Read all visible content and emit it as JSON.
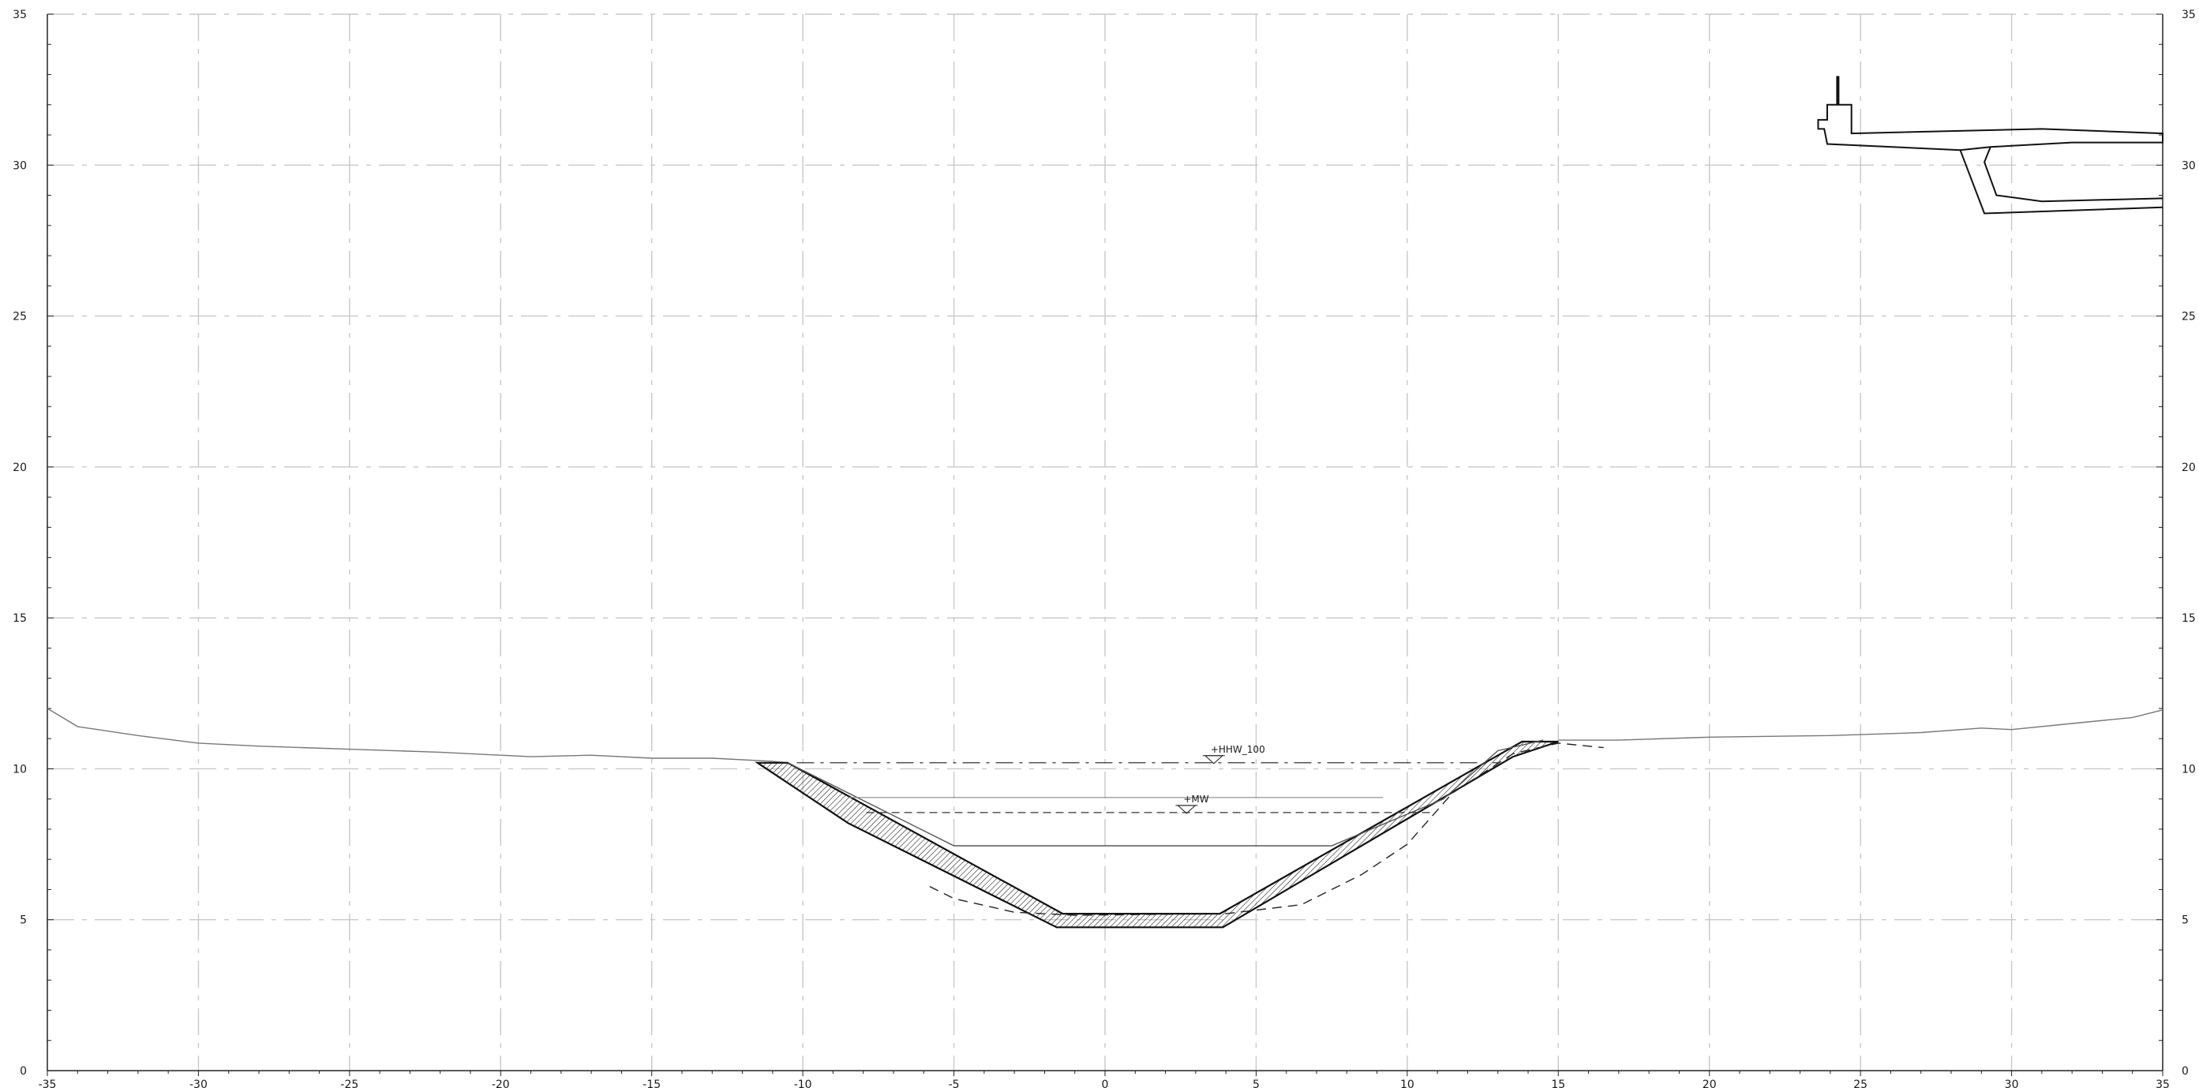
{
  "drawing": {
    "x_range": [
      -35,
      35
    ],
    "y_range": [
      0,
      35
    ],
    "x_ticks": [
      "-35",
      "-30",
      "-25",
      "-20",
      "-15",
      "-10",
      "-5",
      "0",
      "5",
      "10",
      "15",
      "20",
      "25",
      "30",
      "35"
    ],
    "y_ticks": [
      "0",
      "5",
      "10",
      "15",
      "20",
      "25",
      "30",
      "35"
    ],
    "grid": true,
    "water_levels": {
      "hhw": {
        "label": "+HHW_100",
        "level": 10.2,
        "x_from": -10.2,
        "x_to": 13.0,
        "marker_x": 3.6
      },
      "mw": {
        "label": "+MW",
        "level": 8.55,
        "x_from": -7.9,
        "x_to": 10.8,
        "marker_x": 2.7
      }
    },
    "terrain": [
      [
        -35,
        12.0
      ],
      [
        -34,
        11.4
      ],
      [
        -32,
        11.1
      ],
      [
        -30,
        10.85
      ],
      [
        -28,
        10.75
      ],
      [
        -25,
        10.65
      ],
      [
        -22,
        10.55
      ],
      [
        -19,
        10.4
      ],
      [
        -17,
        10.45
      ],
      [
        -15,
        10.35
      ],
      [
        -13,
        10.35
      ],
      [
        -11,
        10.25
      ],
      [
        -10.5,
        10.2
      ]
    ],
    "terrain_right": [
      [
        15,
        10.95
      ],
      [
        17,
        10.95
      ],
      [
        20,
        11.05
      ],
      [
        24,
        11.1
      ],
      [
        27,
        11.2
      ],
      [
        29,
        11.35
      ],
      [
        30,
        11.3
      ],
      [
        32,
        11.5
      ],
      [
        34,
        11.7
      ],
      [
        35,
        11.95
      ]
    ],
    "channel_top": [
      [
        -11.5,
        10.2
      ],
      [
        -10.5,
        10.2
      ],
      [
        -1.4,
        5.2
      ],
      [
        3.8,
        5.2
      ],
      [
        13.8,
        10.9
      ],
      [
        15,
        10.9
      ]
    ],
    "channel_bottom": [
      [
        -11.5,
        10.2
      ],
      [
        -8.5,
        8.2
      ],
      [
        -1.6,
        4.75
      ],
      [
        3.9,
        4.75
      ],
      [
        13.5,
        10.4
      ],
      [
        15,
        10.9
      ]
    ],
    "inner_outline": [
      [
        -10.5,
        10.2
      ],
      [
        -5,
        7.45
      ],
      [
        7.5,
        7.45
      ],
      [
        11.2,
        9.0
      ],
      [
        13.0,
        10.6
      ],
      [
        14.5,
        10.95
      ]
    ],
    "low_level_line": [
      [
        -8.5,
        9.05
      ],
      [
        9.2,
        9.05
      ]
    ],
    "subgrade_dashed": [
      [
        -5.8,
        6.1
      ],
      [
        -5,
        5.7
      ],
      [
        -3,
        5.25
      ],
      [
        -1,
        5.15
      ],
      [
        4,
        5.2
      ],
      [
        6.5,
        5.5
      ],
      [
        8.5,
        6.5
      ],
      [
        10.0,
        7.5
      ],
      [
        11.5,
        9.2
      ],
      [
        13.5,
        10.5
      ],
      [
        15,
        10.85
      ],
      [
        16.5,
        10.7
      ]
    ],
    "bridge": {
      "deck_outline": [
        [
          23.6,
          31.5
        ],
        [
          23.6,
          31.2
        ],
        [
          23.8,
          31.2
        ],
        [
          23.9,
          30.7
        ],
        [
          28.3,
          30.5
        ],
        [
          29.3,
          30.6
        ],
        [
          32,
          30.75
        ],
        [
          35,
          30.75
        ],
        [
          35,
          31.05
        ],
        [
          31,
          31.2
        ],
        [
          24.7,
          31.05
        ],
        [
          24.7,
          32.0
        ],
        [
          23.9,
          32.0
        ],
        [
          23.9,
          31.5
        ]
      ],
      "post": [
        [
          24.25,
          32.0
        ],
        [
          24.25,
          32.95
        ]
      ],
      "pier_outer": [
        [
          28.3,
          30.5
        ],
        [
          29.1,
          28.4
        ],
        [
          35,
          28.6
        ]
      ],
      "pier_inner": [
        [
          29.3,
          30.6
        ],
        [
          29.1,
          30.1
        ],
        [
          29.5,
          29.0
        ],
        [
          31.0,
          28.8
        ],
        [
          35,
          28.9
        ]
      ]
    }
  }
}
